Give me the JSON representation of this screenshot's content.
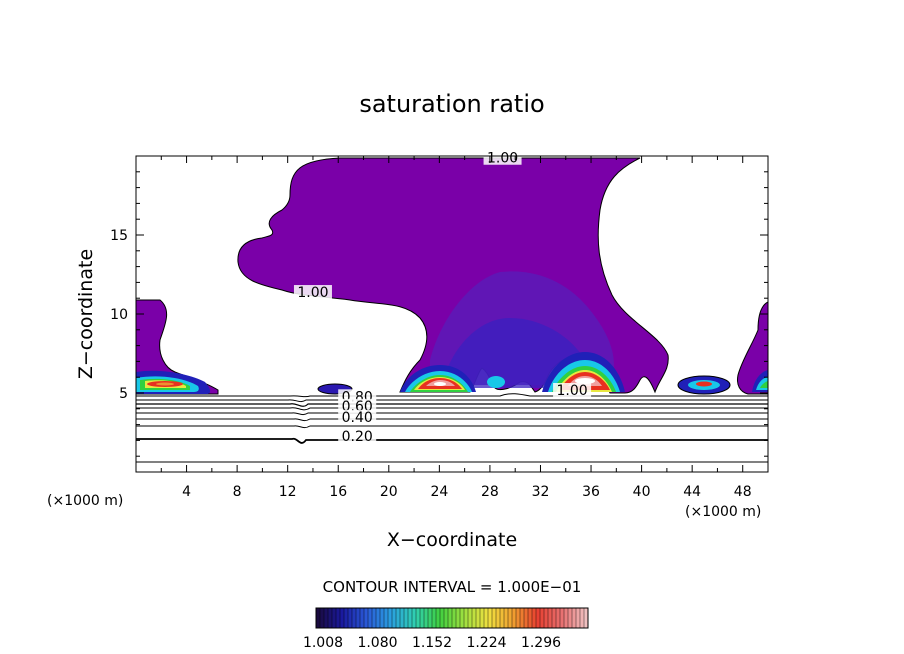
{
  "chart_data": {
    "type": "contour",
    "title": "saturation ratio",
    "xlabel": "X−coordinate",
    "ylabel": "Z−coordinate",
    "x_unit_left": "(×1000 m)",
    "x_unit_right": "(×1000 m)",
    "xlim": [
      0,
      50
    ],
    "ylim": [
      0,
      20
    ],
    "x_ticks": [
      4,
      8,
      12,
      16,
      20,
      24,
      28,
      32,
      36,
      40,
      44,
      48
    ],
    "y_ticks": [
      5,
      10,
      15
    ],
    "contour_labels": [
      {
        "text": "1.00",
        "x": 29,
        "y": 19.7
      },
      {
        "text": "1.00",
        "x": 14,
        "y": 11.2
      },
      {
        "text": "1.00",
        "x": 34.5,
        "y": 5.0
      },
      {
        "text": "0.80",
        "x": 17.5,
        "y": 4.6
      },
      {
        "text": "0.60",
        "x": 17.5,
        "y": 4.0
      },
      {
        "text": "0.40",
        "x": 17.5,
        "y": 3.3
      },
      {
        "text": "0.20",
        "x": 17.5,
        "y": 2.1
      }
    ],
    "contour_interval_text": "CONTOUR INTERVAL = 1.000E−01",
    "colorbar": {
      "labels": [
        "1.008",
        "1.080",
        "1.152",
        "1.224",
        "1.296"
      ],
      "colors": [
        "#1a0a40",
        "#1a1aa0",
        "#2a5ad8",
        "#2aa0e0",
        "#30d0b0",
        "#40d040",
        "#a0e040",
        "#f0e040",
        "#f0a030",
        "#e84030",
        "#e87070",
        "#f0c0c0"
      ]
    },
    "colors": {
      "purple": "#7a00a8",
      "dark_violet": "#5a1ab8",
      "blue": "#2020b8",
      "cyan": "#18c8e8",
      "green": "#30d040",
      "yellow": "#e8e840",
      "orange": "#f09030",
      "red": "#e83020",
      "pink": "#f0a0a0"
    }
  }
}
